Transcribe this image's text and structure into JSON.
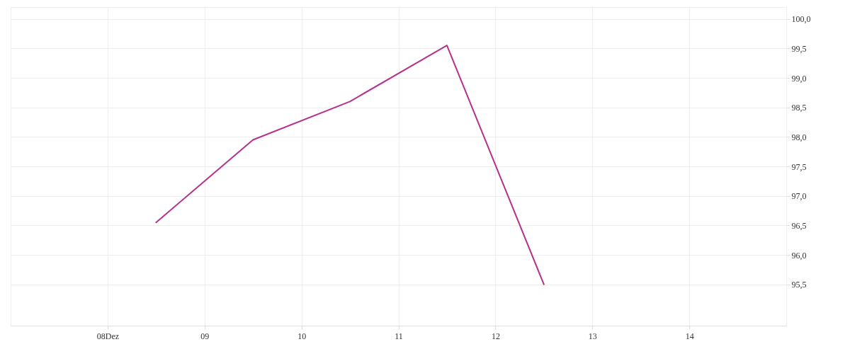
{
  "chart_data": {
    "type": "line",
    "x": [
      "--12-08T12:00",
      "--12-09T12:00",
      "--12-10T12:00",
      "--12-11T12:00",
      "--12-12T12:00"
    ],
    "series": [
      {
        "color": "#b5318c",
        "values": [
          96.55,
          97.95,
          98.6,
          99.55,
          95.5
        ]
      }
    ],
    "xlim": [
      "--12-07",
      "--12-15"
    ],
    "xticks": [
      {
        "value": "--12-08",
        "label": "08Dez"
      },
      {
        "value": "--12-09",
        "label": "09"
      },
      {
        "value": "--12-10",
        "label": "10"
      },
      {
        "value": "--12-11",
        "label": "11"
      },
      {
        "value": "--12-12",
        "label": "12"
      },
      {
        "value": "--12-13",
        "label": "13"
      },
      {
        "value": "--12-14",
        "label": "14"
      }
    ],
    "ylim": [
      94.8,
      100.2
    ],
    "yticks": [
      {
        "value": 95.5,
        "label": "95,5"
      },
      {
        "value": 96,
        "label": "96,0"
      },
      {
        "value": 96.5,
        "label": "96,5"
      },
      {
        "value": 97,
        "label": "97,0"
      },
      {
        "value": 97.5,
        "label": "97,5"
      },
      {
        "value": 98,
        "label": "98,0"
      },
      {
        "value": 98.5,
        "label": "98,5"
      },
      {
        "value": 99,
        "label": "99,0"
      },
      {
        "value": 99.5,
        "label": "99,5"
      },
      {
        "value": 100,
        "label": "100,0"
      }
    ],
    "grid": true,
    "marker": "none",
    "line_style": "solid"
  }
}
